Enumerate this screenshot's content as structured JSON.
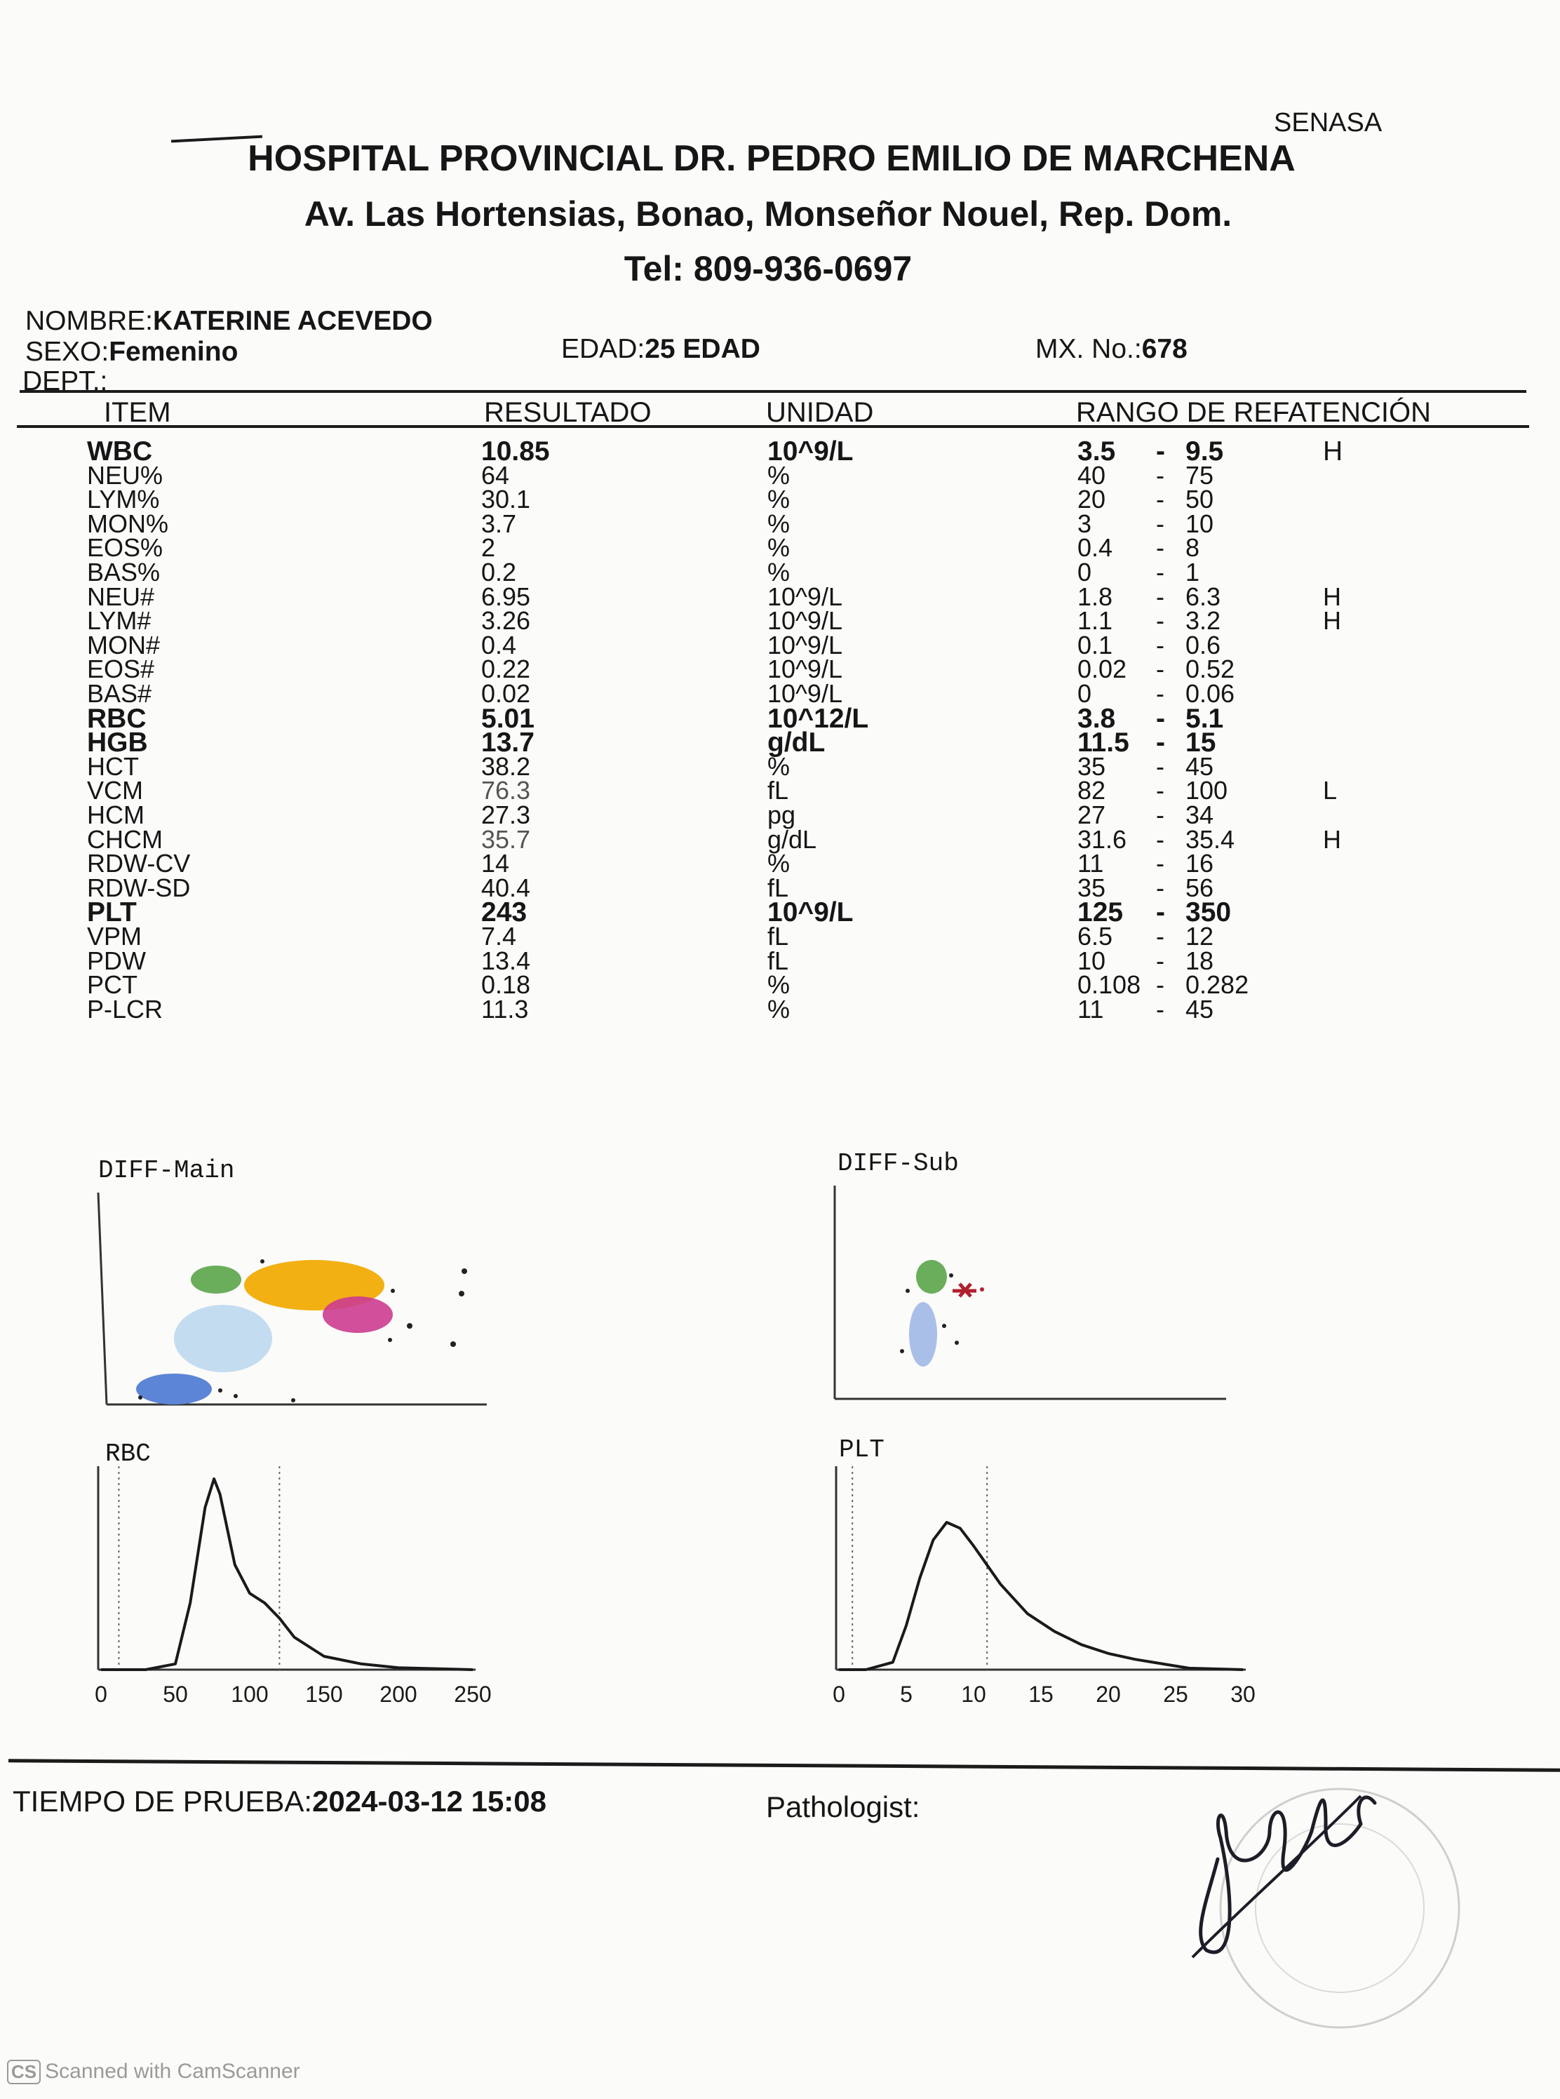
{
  "header": {
    "senasa": "SENASA",
    "hospital": "HOSPITAL PROVINCIAL DR. PEDRO EMILIO DE MARCHENA",
    "address": "Av. Las Hortensias, Bonao, Monseñor Nouel, Rep. Dom.",
    "tel": "Tel: 809-936-0697"
  },
  "patient": {
    "nombre_label": "NOMBRE:",
    "nombre": "KATERINE ACEVEDO",
    "sexo_label": "SEXO:",
    "sexo": "Femenino",
    "dept_label": "DEPT.:",
    "edad_label": "EDAD:",
    "edad": "25 EDAD",
    "mx_label": "MX. No.:",
    "mx": "678"
  },
  "table": {
    "headers": {
      "item": "ITEM",
      "resultado": "RESULTADO",
      "unidad": "UNIDAD",
      "rango": "RANGO DE REFATENCIÓN"
    },
    "rows": [
      {
        "item": "WBC",
        "result": "10.85",
        "unit": "10^9/L",
        "low": "3.5",
        "high": "9.5",
        "flag": "H"
      },
      {
        "item": "NEU%",
        "result": "64",
        "unit": "%",
        "low": "40",
        "high": "75",
        "flag": ""
      },
      {
        "item": "LYM%",
        "result": "30.1",
        "unit": "%",
        "low": "20",
        "high": "50",
        "flag": ""
      },
      {
        "item": "MON%",
        "result": "3.7",
        "unit": "%",
        "low": "3",
        "high": "10",
        "flag": ""
      },
      {
        "item": "EOS%",
        "result": "2",
        "unit": "%",
        "low": "0.4",
        "high": "8",
        "flag": ""
      },
      {
        "item": "BAS%",
        "result": "0.2",
        "unit": "%",
        "low": "0",
        "high": "1",
        "flag": ""
      },
      {
        "item": "NEU#",
        "result": "6.95",
        "unit": "10^9/L",
        "low": "1.8",
        "high": "6.3",
        "flag": "H"
      },
      {
        "item": "LYM#",
        "result": "3.26",
        "unit": "10^9/L",
        "low": "1.1",
        "high": "3.2",
        "flag": "H"
      },
      {
        "item": "MON#",
        "result": "0.4",
        "unit": "10^9/L",
        "low": "0.1",
        "high": "0.6",
        "flag": ""
      },
      {
        "item": "EOS#",
        "result": "0.22",
        "unit": "10^9/L",
        "low": "0.02",
        "high": "0.52",
        "flag": ""
      },
      {
        "item": "BAS#",
        "result": "0.02",
        "unit": "10^9/L",
        "low": "0",
        "high": "0.06",
        "flag": ""
      },
      {
        "item": "RBC",
        "result": "5.01",
        "unit": "10^12/L",
        "low": "3.8",
        "high": "5.1",
        "flag": ""
      },
      {
        "item": "HGB",
        "result": "13.7",
        "unit": "g/dL",
        "low": "11.5",
        "high": "15",
        "flag": ""
      },
      {
        "item": "HCT",
        "result": "38.2",
        "unit": "%",
        "low": "35",
        "high": "45",
        "flag": ""
      },
      {
        "item": "VCM",
        "result": "76.3",
        "unit": "fL",
        "low": "82",
        "high": "100",
        "flag": "L"
      },
      {
        "item": "HCM",
        "result": "27.3",
        "unit": "pg",
        "low": "27",
        "high": "34",
        "flag": ""
      },
      {
        "item": "CHCM",
        "result": "35.7",
        "unit": "g/dL",
        "low": "31.6",
        "high": "35.4",
        "flag": "H"
      },
      {
        "item": "RDW-CV",
        "result": "14",
        "unit": "%",
        "low": "11",
        "high": "16",
        "flag": ""
      },
      {
        "item": "RDW-SD",
        "result": "40.4",
        "unit": "fL",
        "low": "35",
        "high": "56",
        "flag": ""
      },
      {
        "item": "PLT",
        "result": "243",
        "unit": "10^9/L",
        "low": "125",
        "high": "350",
        "flag": ""
      },
      {
        "item": "VPM",
        "result": "7.4",
        "unit": "fL",
        "low": "6.5",
        "high": "12",
        "flag": ""
      },
      {
        "item": "PDW",
        "result": "13.4",
        "unit": "fL",
        "low": "10",
        "high": "18",
        "flag": ""
      },
      {
        "item": "PCT",
        "result": "0.18",
        "unit": "%",
        "low": "0.108",
        "high": "0.282",
        "flag": ""
      },
      {
        "item": "P-LCR",
        "result": "11.3",
        "unit": "%",
        "low": "11",
        "high": "45",
        "flag": ""
      }
    ]
  },
  "plots": {
    "diff_main": "DIFF-Main",
    "diff_sub": "DIFF-Sub",
    "rbc": {
      "label": "RBC",
      "ticks": [
        "0",
        "50",
        "100",
        "150",
        "200",
        "250"
      ]
    },
    "plt": {
      "label": "PLT",
      "ticks": [
        "0",
        "5",
        "10",
        "15",
        "20",
        "25",
        "30"
      ]
    }
  },
  "chart_data": [
    {
      "type": "area",
      "title": "RBC",
      "x": [
        0,
        30,
        50,
        60,
        70,
        76,
        80,
        90,
        100,
        110,
        120,
        130,
        150,
        175,
        200,
        250
      ],
      "y": [
        0,
        0,
        3,
        35,
        85,
        100,
        92,
        55,
        40,
        35,
        27,
        17,
        7,
        3,
        1,
        0
      ],
      "xlim": [
        0,
        250
      ],
      "ticks": [
        0,
        50,
        100,
        150,
        200,
        250
      ]
    },
    {
      "type": "area",
      "title": "PLT",
      "x": [
        0,
        2,
        4,
        5,
        6,
        7,
        8,
        9,
        10,
        12,
        14,
        16,
        18,
        20,
        22,
        24,
        26,
        30
      ],
      "y": [
        0,
        0,
        5,
        30,
        62,
        88,
        100,
        96,
        84,
        58,
        38,
        26,
        17,
        11,
        7,
        4,
        1,
        0
      ],
      "xlim": [
        0,
        30
      ],
      "ticks": [
        0,
        5,
        10,
        15,
        20,
        25,
        30
      ]
    }
  ],
  "footer": {
    "tiempo_label": "TIEMPO DE PRUEBA:",
    "tiempo": "2024-03-12 15:08",
    "pathologist": "Pathologist:",
    "scanner": "Scanned with CamScanner",
    "scanner_badge": "CS"
  },
  "colors": {
    "neu": "#f2b013",
    "lym": "#5c85d6",
    "mon": "#c4dcf0",
    "eos": "#cc3c90",
    "bas": "#6aad5a",
    "flag_red": "#a02020"
  }
}
